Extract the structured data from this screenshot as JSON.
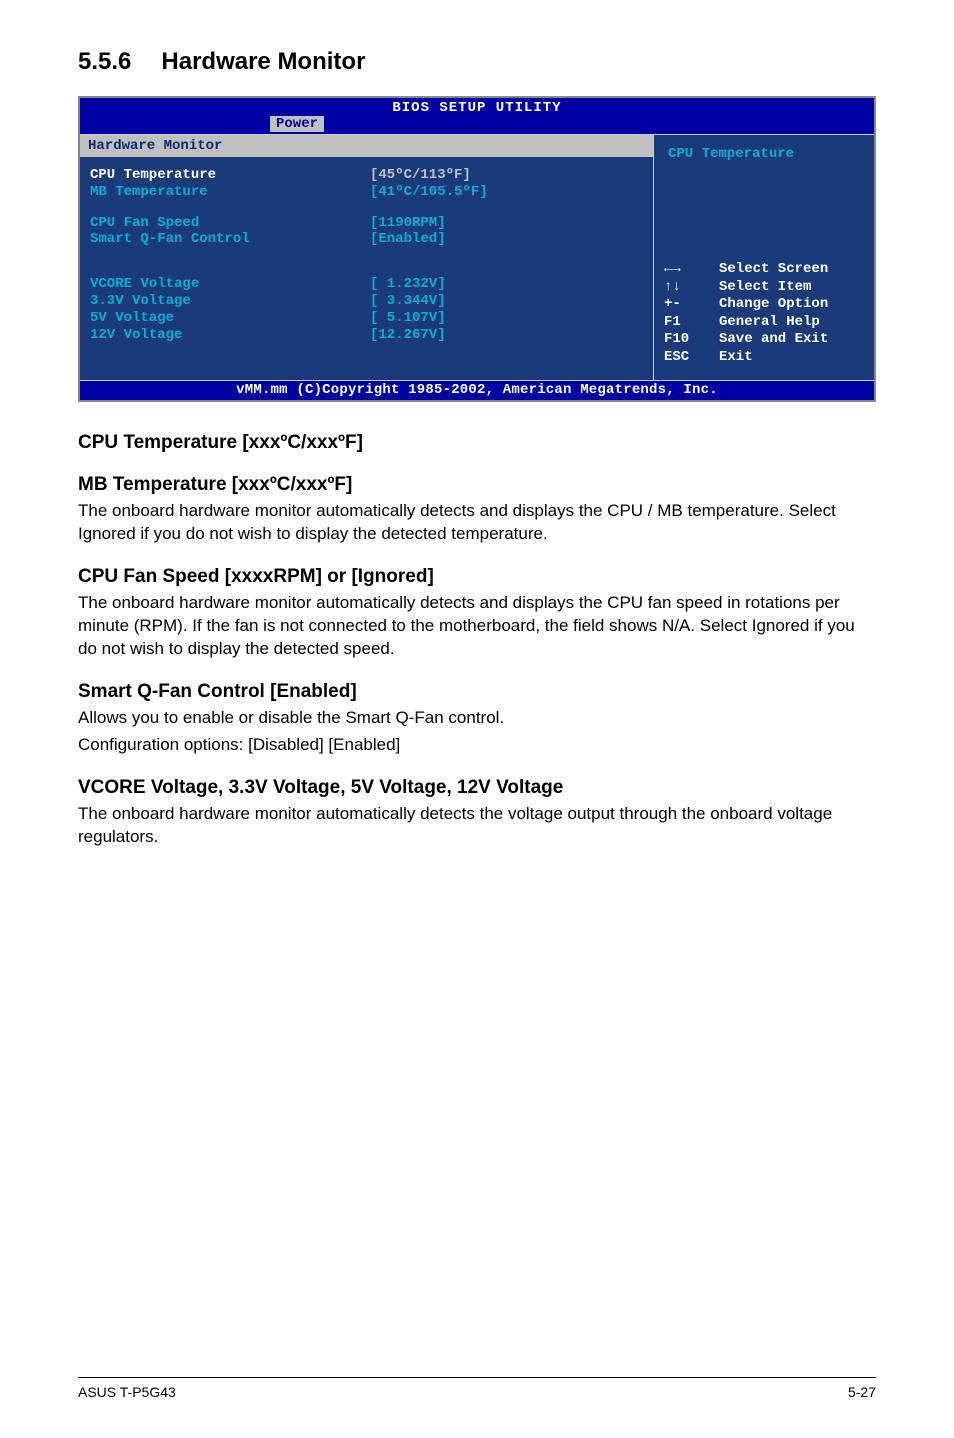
{
  "section": {
    "number": "5.5.6",
    "title": "Hardware Monitor"
  },
  "bios": {
    "titlebar": "BIOS SETUP UTILITY",
    "tab": "Power",
    "header_left": "Hardware Monitor",
    "header_right": "CPU Temperature",
    "items": [
      {
        "label": "CPU Temperature",
        "value": "[45ºC/113ºF]",
        "selected": true
      },
      {
        "label": "MB Temperature",
        "value": "[41ºC/105.5ºF]",
        "selected": false
      }
    ],
    "fan": [
      {
        "label": "CPU Fan Speed",
        "value": "[1190RPM]"
      },
      {
        "label": "Smart Q-Fan Control",
        "value": "[Enabled]"
      }
    ],
    "volt": [
      {
        "label": "VCORE Voltage",
        "value": "[ 1.232V]"
      },
      {
        "label": "3.3V Voltage",
        "value": "[ 3.344V]"
      },
      {
        "label": "5V Voltage",
        "value": "[ 5.107V]"
      },
      {
        "label": "12V Voltage",
        "value": "[12.267V]"
      }
    ],
    "help": [
      {
        "key": "←→",
        "desc": "Select Screen"
      },
      {
        "key": "↑↓",
        "desc": "Select Item"
      },
      {
        "key": "+-",
        "desc": "Change Option"
      },
      {
        "key": "F1",
        "desc": "General Help"
      },
      {
        "key": "F10",
        "desc": "Save and Exit"
      },
      {
        "key": "ESC",
        "desc": "Exit"
      }
    ],
    "copyright": "vMM.mm (C)Copyright 1985-2002, American Megatrends, Inc."
  },
  "body": {
    "h1": "CPU Temperature [xxxºC/xxxºF]",
    "h2": "MB Temperature [xxxºC/xxxºF]",
    "p1": "The onboard hardware monitor automatically detects and displays the CPU / MB temperature. Select Ignored if you do not wish to display the detected temperature.",
    "h3": "CPU Fan Speed [xxxxRPM] or [Ignored]",
    "p2": "The onboard hardware monitor automatically detects and displays the CPU fan speed in rotations per minute (RPM). If the fan is not connected to the motherboard, the field shows N/A. Select Ignored if you do not wish to display the detected speed.",
    "h4": "Smart Q-Fan Control [Enabled]",
    "p3": "Allows you to enable or disable the Smart Q-Fan control.",
    "p3b": "Configuration options: [Disabled] [Enabled]",
    "h5": "VCORE Voltage, 3.3V Voltage, 5V Voltage, 12V Voltage",
    "p4": "The onboard hardware monitor automatically detects the voltage output through the onboard voltage regulators."
  },
  "footer": {
    "left": "ASUS T-P5G43",
    "right": "5-27"
  }
}
